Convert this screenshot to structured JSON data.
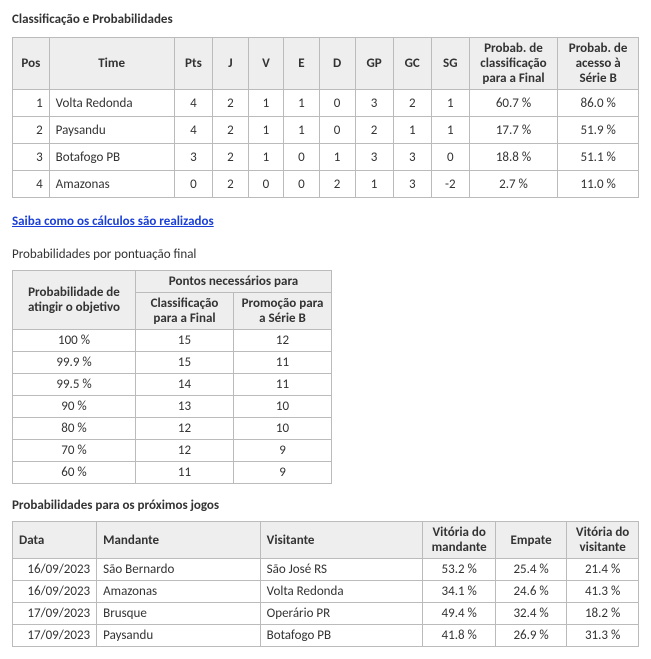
{
  "section1_title": "Classificação e Probabilidades",
  "t1": {
    "headers": {
      "pos": "Pos",
      "time": "Time",
      "pts": "Pts",
      "j": "J",
      "v": "V",
      "e": "E",
      "d": "D",
      "gp": "GP",
      "gc": "GC",
      "sg": "SG",
      "p1": "Probab. de classificação para a Final",
      "p2": "Probab. de acesso à Série B"
    },
    "rows": [
      {
        "pos": "1",
        "time": "Volta Redonda",
        "pts": "4",
        "j": "2",
        "v": "1",
        "e": "1",
        "d": "0",
        "gp": "3",
        "gc": "2",
        "sg": "1",
        "p1": "60.7 %",
        "p2": "86.0 %"
      },
      {
        "pos": "2",
        "time": "Paysandu",
        "pts": "4",
        "j": "2",
        "v": "1",
        "e": "1",
        "d": "0",
        "gp": "2",
        "gc": "1",
        "sg": "1",
        "p1": "17.7 %",
        "p2": "51.9 %"
      },
      {
        "pos": "3",
        "time": "Botafogo PB",
        "pts": "3",
        "j": "2",
        "v": "1",
        "e": "0",
        "d": "1",
        "gp": "3",
        "gc": "3",
        "sg": "0",
        "p1": "18.8 %",
        "p2": "51.1 %"
      },
      {
        "pos": "4",
        "time": "Amazonas",
        "pts": "0",
        "j": "2",
        "v": "0",
        "e": "0",
        "d": "2",
        "gp": "1",
        "gc": "3",
        "sg": "-2",
        "p1": "2.7 %",
        "p2": "11.0 %"
      }
    ]
  },
  "calc_link": "Saiba como os cálculos são realizados",
  "section2_title": "Probabilidades por pontuação final",
  "t2": {
    "h_prob": "Probabilidade de atingir o objetivo",
    "h_group": "Pontos necessários para",
    "h_c1": "Classificação para a Final",
    "h_c2": "Promoção para a Série B",
    "rows": [
      {
        "p": "100 %",
        "c1": "15",
        "c2": "12"
      },
      {
        "p": "99.9 %",
        "c1": "15",
        "c2": "11"
      },
      {
        "p": "99.5 %",
        "c1": "14",
        "c2": "11"
      },
      {
        "p": "90 %",
        "c1": "13",
        "c2": "10"
      },
      {
        "p": "80 %",
        "c1": "12",
        "c2": "10"
      },
      {
        "p": "70 %",
        "c1": "12",
        "c2": "9"
      },
      {
        "p": "60 %",
        "c1": "11",
        "c2": "9"
      }
    ]
  },
  "section3_title": "Probabilidades para os próximos jogos",
  "t3": {
    "headers": {
      "data": "Data",
      "mand": "Mandante",
      "vis": "Visitante",
      "vm": "Vitória do mandante",
      "emp": "Empate",
      "vv": "Vitória do visitante"
    },
    "rows": [
      {
        "d": "16/09/2023",
        "m": "São Bernardo",
        "v": "São José RS",
        "vm": "53.2 %",
        "e": "25.4 %",
        "vv": "21.4 %"
      },
      {
        "d": "16/09/2023",
        "m": "Amazonas",
        "v": "Volta Redonda",
        "vm": "34.1 %",
        "e": "24.6 %",
        "vv": "41.3 %"
      },
      {
        "d": "17/09/2023",
        "m": "Brusque",
        "v": "Operário PR",
        "vm": "49.4 %",
        "e": "32.4 %",
        "vv": "18.2 %"
      },
      {
        "d": "17/09/2023",
        "m": "Paysandu",
        "v": "Botafogo PB",
        "vm": "41.8 %",
        "e": "26.9 %",
        "vv": "31.3 %"
      }
    ]
  }
}
